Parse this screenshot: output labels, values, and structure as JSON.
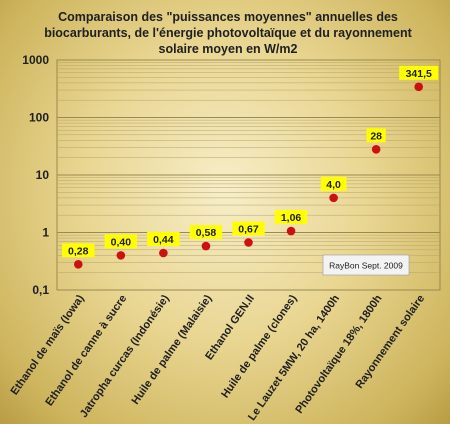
{
  "chart_data": {
    "type": "scatter",
    "title_lines": [
      "Comparaison des \"puissances moyennes\" annuelles des",
      "biocarburants, de l'énergie  photovoltaïque et  du rayonnement",
      "solaire moyen en W/m2"
    ],
    "categories": [
      "Ethanol de maïs (Iowa)",
      "Ethanol de canne à sucre",
      "Jatropha curcas (Indonésie)",
      "Huile de palme (Malaisie)",
      "Ethanol GEN.II",
      "Huile de palme (clones)",
      "Le Lauzet 5MW, 20 ha, 1400h",
      "Photovoltaïque 18%, 1800h",
      "Rayonnement solaire"
    ],
    "values": [
      0.28,
      0.4,
      0.44,
      0.58,
      0.67,
      1.06,
      4.0,
      28,
      341.5
    ],
    "value_labels": [
      "0,28",
      "0,40",
      "0,44",
      "0,58",
      "0,67",
      "1,06",
      "4,0",
      "28",
      "341,5"
    ],
    "y_scale": "log",
    "ylim": [
      0.1,
      1000
    ],
    "y_ticks": [
      0.1,
      1,
      10,
      100,
      1000
    ],
    "y_tick_labels": [
      "0,1",
      "1",
      "10",
      "100",
      "1000"
    ],
    "grid": "minor log gridlines",
    "marker_color": "#cc1111",
    "label_background": "#ffff00",
    "annotation": "RayBon Sept. 2009"
  }
}
